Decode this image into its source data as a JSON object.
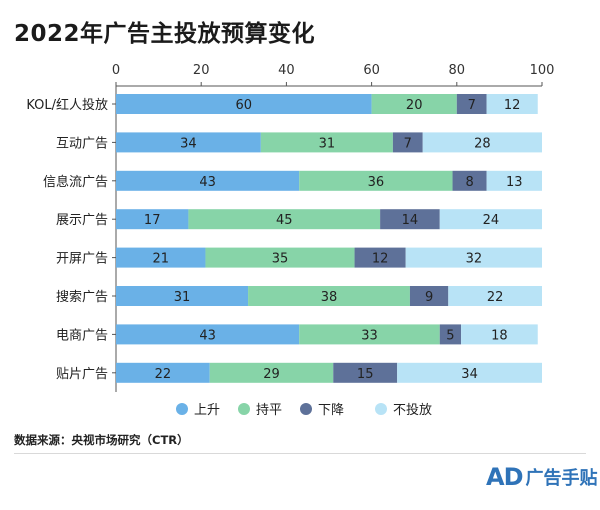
{
  "header": {
    "title": "2022年广告主投放预算变化",
    "source": "数据来源：央视市场研究（CTR）"
  },
  "logo": {
    "mark": "AD",
    "text": "广告手贴"
  },
  "colors": {
    "上升": "#6ab1e7",
    "持平": "#87d4a8",
    "下降": "#5e7199",
    "不投放": "#b8e3f6",
    "axis": "#555555",
    "text": "#222222"
  },
  "chart_data": {
    "type": "bar",
    "orientation": "horizontal",
    "stacked": true,
    "title": "2022年广告主投放预算变化",
    "xlim": [
      0,
      100
    ],
    "xticks": [
      0,
      20,
      40,
      60,
      80,
      100
    ],
    "xaxis_position": "top",
    "grid": false,
    "legend_position": "bottom",
    "categories": [
      "KOL/红人投放",
      "互动广告",
      "信息流广告",
      "展示广告",
      "开屏广告",
      "搜索广告",
      "电商广告",
      "贴片广告"
    ],
    "series": [
      {
        "name": "上升",
        "values": [
          60,
          34,
          43,
          17,
          21,
          31,
          43,
          22
        ]
      },
      {
        "name": "持平",
        "values": [
          20,
          31,
          36,
          45,
          35,
          38,
          33,
          29
        ]
      },
      {
        "name": "下降",
        "values": [
          7,
          7,
          8,
          14,
          12,
          9,
          5,
          15
        ]
      },
      {
        "name": "不投放",
        "values": [
          12,
          28,
          13,
          24,
          32,
          22,
          18,
          34
        ]
      }
    ]
  }
}
